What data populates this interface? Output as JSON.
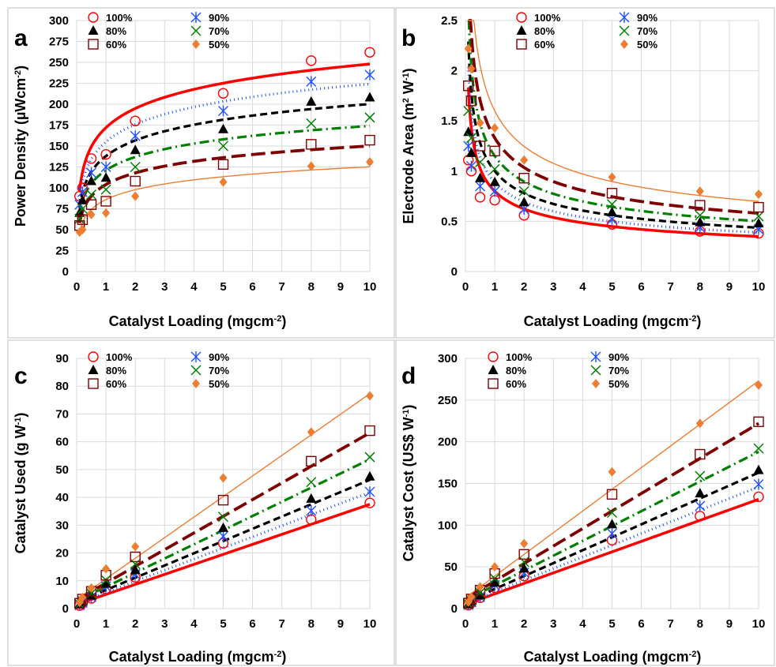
{
  "colors": {
    "100%": "#ff0000",
    "90%": "#1f4fff",
    "80%": "#000000",
    "70%": "#008000",
    "60%": "#7f0000",
    "50%": "#ed7d31",
    "grid": "#d9d9d9",
    "frame": "#bfbfbf"
  },
  "chart_data": [
    {
      "panel": "a",
      "type": "scatter",
      "xlabel": "Catalyst Loading (mgcm",
      "xlabel_sup": "-2",
      "xlabel_tail": ")",
      "ylabel": "Power Density (µWcm",
      "ylabel_sup": "-2",
      "ylabel_tail": ")",
      "xlim": [
        0,
        10
      ],
      "ylim": [
        0,
        300
      ],
      "xticks": [
        "0",
        "1",
        "2",
        "3",
        "4",
        "5",
        "6",
        "7",
        "8",
        "9",
        "10"
      ],
      "yticks": [
        "0",
        "25",
        "50",
        "75",
        "100",
        "125",
        "150",
        "175",
        "200",
        "225",
        "250",
        "275",
        "300"
      ],
      "fit": "log",
      "x": [
        0.1,
        0.2,
        0.5,
        1,
        2,
        5,
        8,
        10
      ],
      "series": [
        {
          "name": "100%",
          "marker": "circle",
          "line": "solid",
          "values": [
            90,
            100,
            135,
            140,
            180,
            213,
            252,
            262
          ],
          "fit_a": 172,
          "fit_b": 33
        },
        {
          "name": "90%",
          "marker": "star",
          "line": "dotted",
          "values": [
            80,
            95,
            118,
            125,
            162,
            192,
            227,
            235
          ],
          "fit_a": 155,
          "fit_b": 30
        },
        {
          "name": "80%",
          "marker": "triangle",
          "line": "dashed",
          "values": [
            70,
            85,
            108,
            112,
            145,
            170,
            203,
            208
          ],
          "fit_a": 138,
          "fit_b": 27
        },
        {
          "name": "70%",
          "marker": "x",
          "line": "dashdot",
          "values": [
            63,
            75,
            92,
            98,
            125,
            150,
            177,
            184
          ],
          "fit_a": 121,
          "fit_b": 23
        },
        {
          "name": "60%",
          "marker": "square",
          "line": "longdash",
          "values": [
            55,
            62,
            80,
            84,
            108,
            128,
            152,
            157
          ],
          "fit_a": 104,
          "fit_b": 20
        },
        {
          "name": "50%",
          "marker": "diamond",
          "line": "thin",
          "values": [
            47,
            50,
            68,
            70,
            90,
            107,
            126,
            131
          ],
          "fit_a": 86,
          "fit_b": 17
        }
      ]
    },
    {
      "panel": "b",
      "type": "scatter",
      "xlabel": "Catalyst Loading (mgcm",
      "xlabel_sup": "-2",
      "xlabel_tail": ")",
      "ylabel": "Electrode Area (m",
      "ylabel_sup": "2",
      "ylabel_tail": " W",
      "ylabel_sup2": "-1",
      "ylabel_tail2": ")",
      "xlim": [
        0,
        10
      ],
      "ylim": [
        0,
        2.5
      ],
      "xticks": [
        "0",
        "1",
        "2",
        "3",
        "4",
        "5",
        "6",
        "7",
        "8",
        "9",
        "10"
      ],
      "yticks": [
        "0",
        "0.5",
        "1",
        "1.5",
        "2",
        "2.5"
      ],
      "fit": "power",
      "x": [
        0.1,
        0.2,
        0.5,
        1,
        2,
        5,
        8,
        10
      ],
      "series": [
        {
          "name": "100%",
          "marker": "circle",
          "line": "solid",
          "values": [
            1.11,
            1.0,
            0.74,
            0.71,
            0.56,
            0.47,
            0.4,
            0.38
          ],
          "fit_a": 0.8,
          "fit_b": -0.36
        },
        {
          "name": "90%",
          "marker": "star",
          "line": "dotted",
          "values": [
            1.25,
            1.05,
            0.85,
            0.8,
            0.62,
            0.52,
            0.44,
            0.42
          ],
          "fit_a": 0.89,
          "fit_b": -0.36
        },
        {
          "name": "80%",
          "marker": "triangle",
          "line": "dashed",
          "values": [
            1.39,
            1.18,
            0.93,
            0.89,
            0.69,
            0.59,
            0.49,
            0.48
          ],
          "fit_a": 1.0,
          "fit_b": -0.36
        },
        {
          "name": "70%",
          "marker": "x",
          "line": "dashdot",
          "values": [
            1.6,
            1.33,
            1.09,
            1.02,
            0.8,
            0.67,
            0.56,
            0.55
          ],
          "fit_a": 1.15,
          "fit_b": -0.36
        },
        {
          "name": "60%",
          "marker": "square",
          "line": "longdash",
          "values": [
            1.85,
            1.7,
            1.25,
            1.2,
            0.93,
            0.78,
            0.66,
            0.64
          ],
          "fit_a": 1.33,
          "fit_b": -0.36
        },
        {
          "name": "50%",
          "marker": "diamond",
          "line": "thin",
          "values": [
            2.22,
            2.02,
            1.48,
            1.43,
            1.11,
            0.94,
            0.8,
            0.77
          ],
          "fit_a": 1.6,
          "fit_b": -0.36
        }
      ]
    },
    {
      "panel": "c",
      "type": "scatter",
      "xlabel": "Catalyst Loading (mgcm",
      "xlabel_sup": "-2",
      "xlabel_tail": ")",
      "ylabel": "Catalyst Used (g W",
      "ylabel_sup": "-1",
      "ylabel_tail": ")",
      "xlim": [
        0,
        10
      ],
      "ylim": [
        0,
        90
      ],
      "xticks": [
        "0",
        "1",
        "2",
        "3",
        "4",
        "5",
        "6",
        "7",
        "8",
        "9",
        "10"
      ],
      "yticks": [
        "0",
        "10",
        "20",
        "30",
        "40",
        "50",
        "60",
        "70",
        "80",
        "90"
      ],
      "fit": "linear",
      "x": [
        0.1,
        0.2,
        0.5,
        1,
        2,
        5,
        8,
        10
      ],
      "series": [
        {
          "name": "100%",
          "marker": "circle",
          "line": "solid",
          "values": [
            1.1,
            2.0,
            3.7,
            7.1,
            11.2,
            23.5,
            32,
            38
          ],
          "fit_a": 3.6,
          "fit_b": 1.5
        },
        {
          "name": "90%",
          "marker": "star",
          "line": "dotted",
          "values": [
            1.2,
            2.1,
            4.2,
            8.0,
            12.4,
            26,
            35.2,
            42
          ],
          "fit_a": 4.0,
          "fit_b": 1.8
        },
        {
          "name": "80%",
          "marker": "triangle",
          "line": "dashed",
          "values": [
            1.4,
            2.4,
            4.7,
            8.9,
            13.8,
            29,
            39.5,
            47.5
          ],
          "fit_a": 4.4,
          "fit_b": 2.3
        },
        {
          "name": "70%",
          "marker": "x",
          "line": "dashdot",
          "values": [
            1.6,
            2.7,
            5.4,
            10.2,
            16,
            33,
            45.5,
            54.5
          ],
          "fit_a": 5.1,
          "fit_b": 2.7
        },
        {
          "name": "60%",
          "marker": "square",
          "line": "longdash",
          "values": [
            1.9,
            3.4,
            6.2,
            12,
            18.6,
            39,
            53,
            64
          ],
          "fit_a": 6.0,
          "fit_b": 3.2
        },
        {
          "name": "50%",
          "marker": "diamond",
          "line": "thin",
          "values": [
            2.2,
            4.0,
            7.4,
            14.3,
            22.3,
            47,
            63.5,
            76.5
          ],
          "fit_a": 7.4,
          "fit_b": 3.3
        }
      ]
    },
    {
      "panel": "d",
      "type": "scatter",
      "xlabel": "Catalyst Loading (mgcm",
      "xlabel_sup": "-2",
      "xlabel_tail": ")",
      "ylabel": "Catalyst Cost (US$ W",
      "ylabel_sup": "-1",
      "ylabel_tail": ")",
      "xlim": [
        0,
        10
      ],
      "ylim": [
        0,
        300
      ],
      "xticks": [
        "0",
        "1",
        "2",
        "3",
        "4",
        "5",
        "6",
        "7",
        "8",
        "9",
        "10"
      ],
      "yticks": [
        "0",
        "50",
        "100",
        "150",
        "200",
        "250",
        "300"
      ],
      "fit": "linear",
      "x": [
        0.1,
        0.2,
        0.5,
        1,
        2,
        5,
        8,
        10
      ],
      "series": [
        {
          "name": "100%",
          "marker": "circle",
          "line": "solid",
          "values": [
            4,
            7,
            13,
            25,
            39,
            82,
            111,
            134
          ],
          "fit_a": 12.6,
          "fit_b": 5
        },
        {
          "name": "90%",
          "marker": "star",
          "line": "dotted",
          "values": [
            4.4,
            7.6,
            14,
            28,
            43,
            90,
            123,
            149
          ],
          "fit_a": 14.0,
          "fit_b": 6
        },
        {
          "name": "80%",
          "marker": "triangle",
          "line": "dashed",
          "values": [
            5,
            8.5,
            16,
            31,
            48,
            101,
            138,
            166
          ],
          "fit_a": 15.5,
          "fit_b": 8
        },
        {
          "name": "70%",
          "marker": "x",
          "line": "dashdot",
          "values": [
            5.7,
            9.5,
            19,
            36,
            56,
            115,
            159,
            192
          ],
          "fit_a": 17.8,
          "fit_b": 10
        },
        {
          "name": "60%",
          "marker": "square",
          "line": "longdash",
          "values": [
            6.6,
            11.5,
            22,
            42,
            65,
            137,
            185,
            224
          ],
          "fit_a": 21.0,
          "fit_b": 12
        },
        {
          "name": "50%",
          "marker": "diamond",
          "line": "thin",
          "values": [
            7.8,
            14,
            26,
            50,
            78,
            164,
            222,
            268
          ],
          "fit_a": 26.0,
          "fit_b": 13
        }
      ]
    }
  ]
}
